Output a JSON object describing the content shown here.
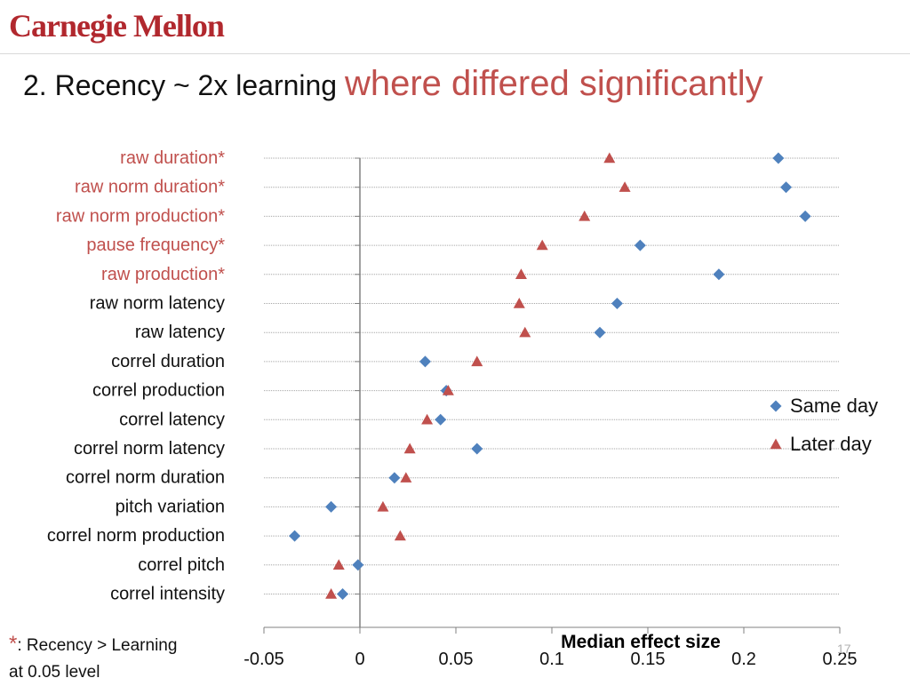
{
  "header": {
    "logo_text": "Carnegie Mellon",
    "title_main": "2. Recency ~ 2x learning ",
    "title_highlight": "where differed significantly"
  },
  "footnote": {
    "star": "*",
    "text_line1": ":  Recency > Learning",
    "text_line2": "at 0.05 level"
  },
  "slide_number": "17",
  "colors": {
    "brand": "#b1282e",
    "highlight": "#c0504d",
    "same_day": "#4f81bd",
    "later_day": "#c0504d",
    "axis": "#808080",
    "grid": "#a6a6a6"
  },
  "chart_data": {
    "type": "scatter",
    "orientation": "horizontal",
    "xlabel": "Median effect size",
    "xlim": [
      -0.05,
      0.25
    ],
    "xticks": [
      -0.05,
      0,
      0.05,
      0.1,
      0.15,
      0.2,
      0.25
    ],
    "xtick_labels": [
      "-0.05",
      "0",
      "0.05",
      "0.1",
      "0.15",
      "0.2",
      "0.25"
    ],
    "grid": true,
    "legend_position": "right",
    "categories": [
      "raw duration*",
      "raw  norm duration*",
      "raw  norm production*",
      "pause frequency*",
      "raw production*",
      "raw norm latency",
      "raw latency",
      "correl duration",
      "correl production",
      "correl latency",
      "correl norm latency",
      "correl norm duration",
      "pitch variation",
      "correl norm production",
      "correl pitch",
      "correl intensity"
    ],
    "highlighted_categories": [
      0,
      1,
      2,
      3,
      4
    ],
    "series": [
      {
        "name": "Same day",
        "marker": "diamond",
        "values": [
          0.218,
          0.222,
          0.232,
          0.146,
          0.187,
          0.134,
          0.125,
          0.034,
          0.045,
          0.042,
          0.061,
          0.018,
          -0.015,
          -0.034,
          -0.001,
          -0.009
        ]
      },
      {
        "name": "Later day",
        "marker": "triangle",
        "values": [
          0.13,
          0.138,
          0.117,
          0.095,
          0.084,
          0.083,
          0.086,
          0.061,
          0.046,
          0.035,
          0.026,
          0.024,
          0.012,
          0.021,
          -0.011,
          -0.015
        ]
      }
    ]
  }
}
